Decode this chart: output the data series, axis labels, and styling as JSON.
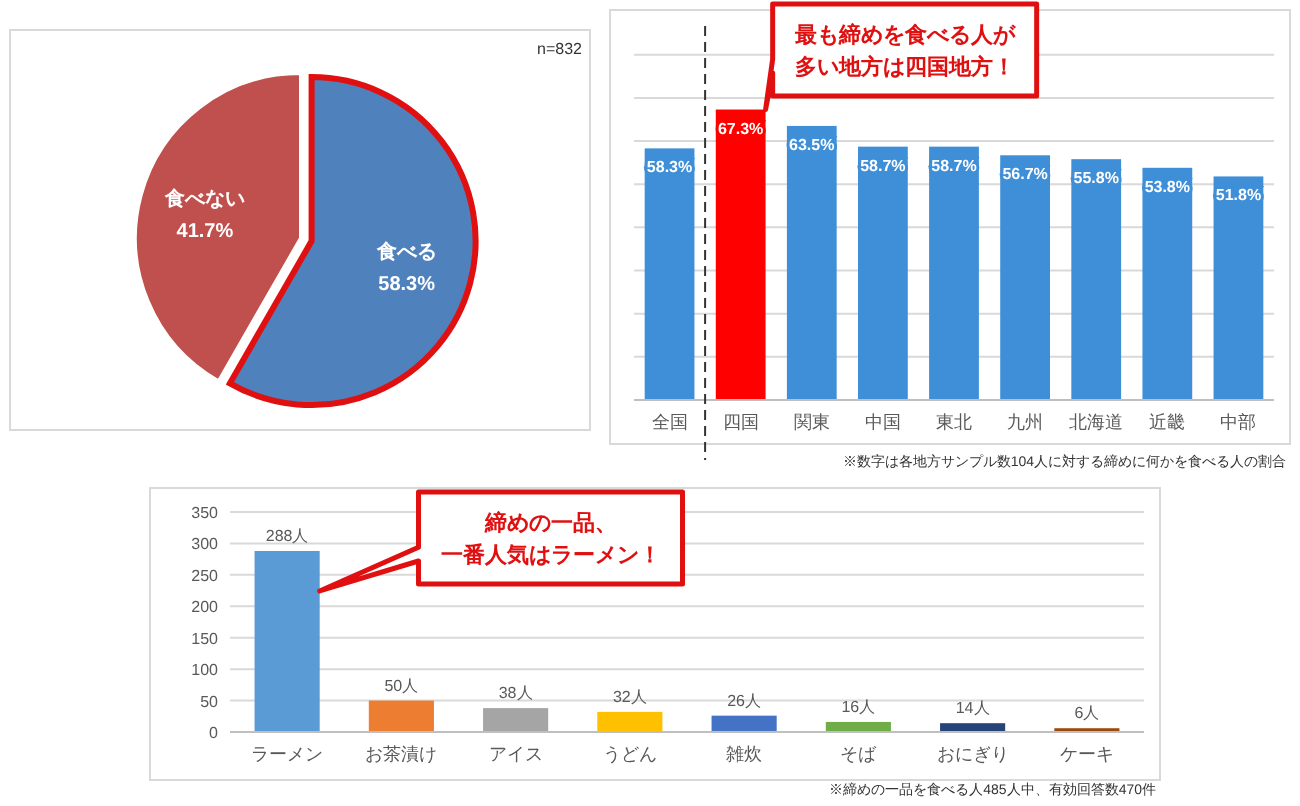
{
  "chart_data": [
    {
      "type": "pie",
      "categories": [
        "食べる",
        "食べない"
      ],
      "values": [
        58.3,
        41.7
      ],
      "colors": [
        "#4f81bd",
        "#c0504d"
      ],
      "value_labels": [
        "58.3%",
        "41.7%"
      ],
      "annotations": [
        "n=832"
      ]
    },
    {
      "type": "bar",
      "categories": [
        "全国",
        "四国",
        "関東",
        "中国",
        "東北",
        "九州",
        "北海道",
        "近畿",
        "中部"
      ],
      "values": [
        58.3,
        67.3,
        63.5,
        58.7,
        58.7,
        56.7,
        55.8,
        53.8,
        51.8
      ],
      "colors": [
        "#3f8fd8",
        "#ff0000",
        "#3f8fd8",
        "#3f8fd8",
        "#3f8fd8",
        "#3f8fd8",
        "#3f8fd8",
        "#3f8fd8",
        "#3f8fd8"
      ],
      "value_labels": [
        "58.3%",
        "67.3%",
        "63.5%",
        "58.7%",
        "58.7%",
        "56.7%",
        "55.8%",
        "53.8%",
        "51.8%"
      ],
      "yticks": [
        {
          "value": 0,
          "label": null
        },
        {
          "value": 10,
          "label": null
        },
        {
          "value": 20,
          "label": null
        },
        {
          "value": 30,
          "label": null
        },
        {
          "value": 40,
          "label": null
        },
        {
          "value": 50,
          "label": null
        },
        {
          "value": 60,
          "label": null
        },
        {
          "value": 70,
          "label": null
        },
        {
          "value": 80,
          "label": null
        }
      ],
      "grid": "y",
      "tick_labels": "x",
      "annotations": [
        "最も締めを食べる人が多い地方は四国地方！",
        "※数字は各地方サンプル数104人に対する締めに何かを食べる人の割合"
      ]
    },
    {
      "type": "bar",
      "categories": [
        "ラーメン",
        "お茶漬け",
        "アイス",
        "うどん",
        "雑炊",
        "そば",
        "おにぎり",
        "ケーキ"
      ],
      "values": [
        288,
        50,
        38,
        32,
        26,
        16,
        14,
        6
      ],
      "colors": [
        "#5b9bd5",
        "#ed7d31",
        "#a5a5a5",
        "#ffc000",
        "#4472c4",
        "#70ad47",
        "#264478",
        "#9e480e"
      ],
      "value_labels": [
        "288人",
        "50人",
        "38人",
        "32人",
        "26人",
        "16人",
        "14人",
        "6人"
      ],
      "ylim": [
        0,
        350
      ],
      "yticks": [
        0,
        50,
        100,
        150,
        200,
        250,
        300,
        350
      ],
      "grid": "y",
      "annotations": [
        "締めの一品、一番人気はラーメン！",
        "※締めの一品を食べる人485人中、有効回答数470件"
      ]
    }
  ]
}
